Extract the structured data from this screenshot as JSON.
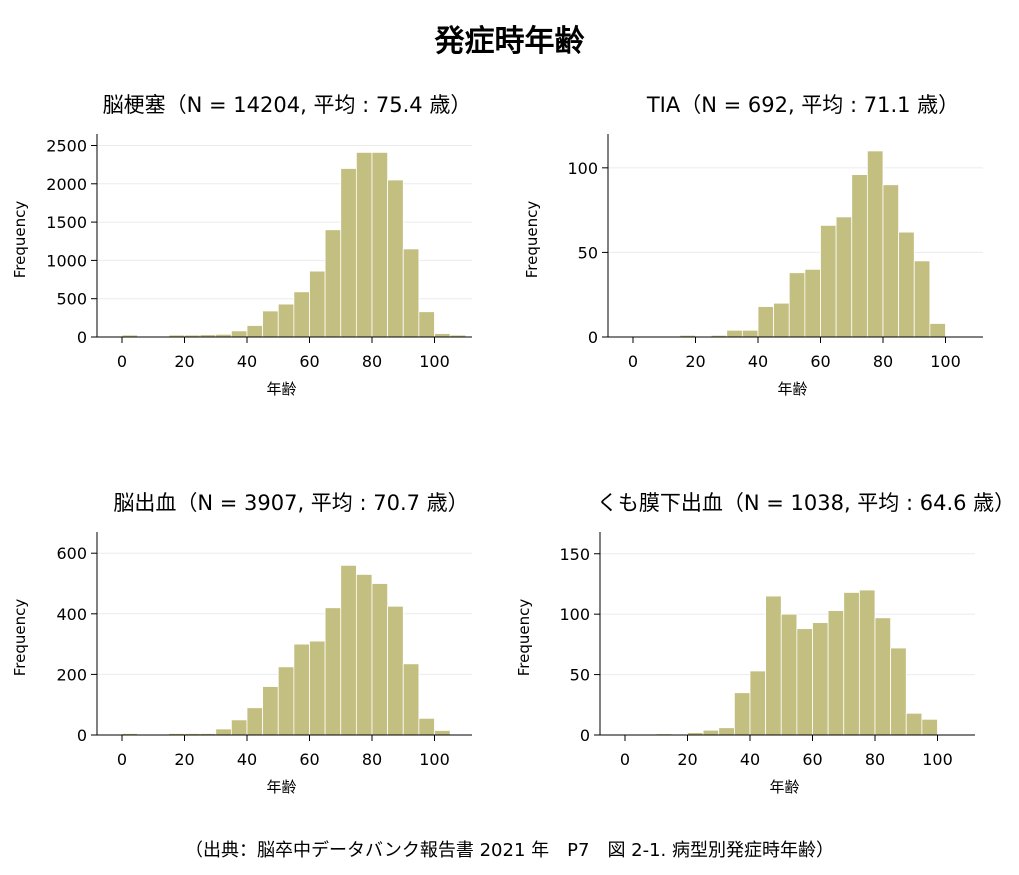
{
  "title": "発症時年齢",
  "source_note": "（出典：脳卒中データバンク報告書 2021 年　P7　図 2-1. 病型別発症時年齢）",
  "bar_color": "#c3bf80",
  "bar_edge_color": "#ffffff",
  "chart_data": [
    {
      "type": "bar",
      "title": "脳梗塞（N = 14204, 平均 : 75.4 歳）",
      "xlabel": "年齢",
      "ylabel": "Frequency",
      "xlim": [
        -8,
        112
      ],
      "ylim": [
        0,
        2650
      ],
      "xticks": [
        0,
        20,
        40,
        60,
        80,
        100
      ],
      "yticks": [
        0,
        500,
        1000,
        1500,
        2000,
        2500
      ],
      "grid": true,
      "bin_width": 5,
      "bin_starts": [
        0,
        5,
        10,
        15,
        20,
        25,
        30,
        35,
        40,
        45,
        50,
        55,
        60,
        65,
        70,
        75,
        80,
        85,
        90,
        95,
        100,
        105
      ],
      "values": [
        25,
        10,
        10,
        25,
        25,
        30,
        35,
        80,
        150,
        340,
        430,
        590,
        860,
        1400,
        2200,
        2410,
        2410,
        2050,
        1150,
        330,
        45,
        25
      ]
    },
    {
      "type": "bar",
      "title": "TIA（N = 692, 平均 : 71.1 歳）",
      "xlabel": "年齢",
      "ylabel": "Frequency",
      "xlim": [
        -8,
        112
      ],
      "ylim": [
        0,
        120
      ],
      "xticks": [
        0,
        20,
        40,
        60,
        80,
        100
      ],
      "yticks": [
        0,
        50,
        100
      ],
      "grid": true,
      "bin_width": 5,
      "bin_starts": [
        15,
        20,
        25,
        30,
        35,
        40,
        45,
        50,
        55,
        60,
        65,
        70,
        75,
        80,
        85,
        90,
        95
      ],
      "values": [
        1,
        0,
        1,
        4,
        4,
        18,
        20,
        38,
        40,
        66,
        71,
        96,
        110,
        90,
        62,
        45,
        8
      ]
    },
    {
      "type": "bar",
      "title": "脳出血（N = 3907, 平均 : 70.7 歳）",
      "xlabel": "年齢",
      "ylabel": "Frequency",
      "xlim": [
        -8,
        112
      ],
      "ylim": [
        0,
        670
      ],
      "xticks": [
        0,
        20,
        40,
        60,
        80,
        100
      ],
      "yticks": [
        0,
        200,
        400,
        600
      ],
      "grid": true,
      "bin_width": 5,
      "bin_starts": [
        0,
        5,
        10,
        15,
        20,
        25,
        30,
        35,
        40,
        45,
        50,
        55,
        60,
        65,
        70,
        75,
        80,
        85,
        90,
        95,
        100
      ],
      "values": [
        5,
        3,
        3,
        5,
        5,
        5,
        20,
        50,
        90,
        160,
        225,
        300,
        310,
        420,
        560,
        530,
        500,
        425,
        235,
        55,
        15
      ]
    },
    {
      "type": "bar",
      "title": "くも膜下出血（N = 1038, 平均 : 64.6 歳）",
      "xlabel": "年齢",
      "ylabel": "Frequency",
      "xlim": [
        -8,
        112
      ],
      "ylim": [
        0,
        168
      ],
      "xticks": [
        0,
        20,
        40,
        60,
        80,
        100
      ],
      "yticks": [
        0,
        50,
        100,
        150
      ],
      "grid": true,
      "bin_width": 5,
      "bin_starts": [
        10,
        15,
        20,
        25,
        30,
        35,
        40,
        45,
        50,
        55,
        60,
        65,
        70,
        75,
        80,
        85,
        90,
        95
      ],
      "values": [
        1,
        0,
        2,
        4,
        6,
        35,
        53,
        115,
        100,
        88,
        93,
        103,
        118,
        120,
        97,
        72,
        18,
        13
      ]
    }
  ]
}
